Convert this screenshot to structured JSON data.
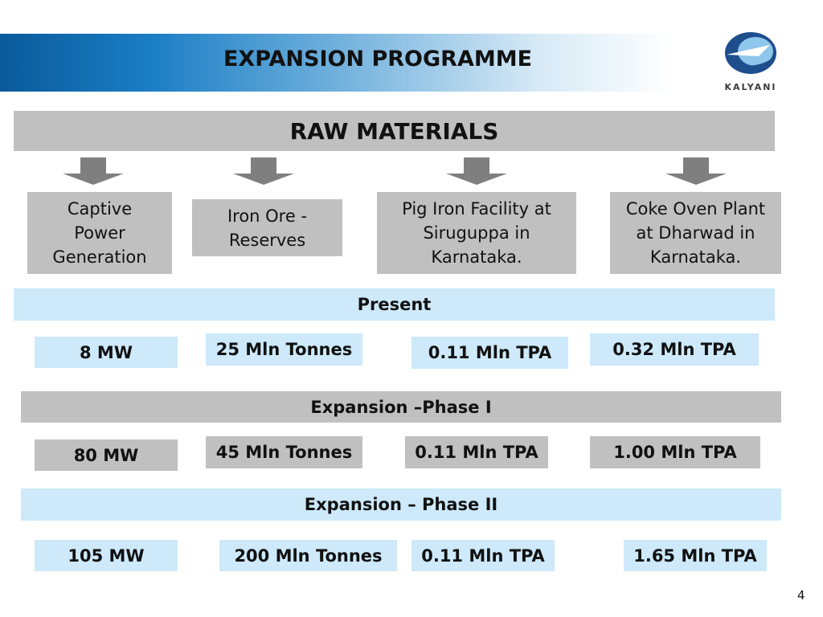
{
  "header": {
    "title": "EXPANSION PROGRAMME",
    "logo_text": "KALYANI"
  },
  "raw_materials": {
    "label": "RAW MATERIALS"
  },
  "categories": [
    {
      "label": "Captive Power Generation"
    },
    {
      "label": "Iron Ore - Reserves"
    },
    {
      "label": "Pig Iron Facility at Siruguppa in Karnataka."
    },
    {
      "label": "Coke Oven Plant at Dharwad in Karnataka."
    }
  ],
  "present": {
    "label": "Present",
    "values": [
      "8 MW",
      "25 Mln Tonnes",
      "0.11 Mln TPA",
      "0.32 Mln TPA"
    ]
  },
  "phase1": {
    "label": "Expansion –Phase I",
    "values": [
      "80 MW",
      "45 Mln Tonnes",
      "0.11 Mln TPA",
      "1.00 Mln TPA"
    ]
  },
  "phase2": {
    "label": "Expansion – Phase II",
    "values": [
      "105 MW",
      "200 Mln Tonnes",
      "0.11 Mln TPA",
      "1.65 Mln TPA"
    ]
  },
  "footer": {
    "page_number": "4"
  },
  "colors": {
    "gray_box": "#c0c0c0",
    "light_blue_box": "#cde9fa",
    "header_blue": "#0a5a9a",
    "arrow_gray": "#7f7f7f"
  },
  "icons": [
    "kalyani-logo-icon",
    "down-arrow-icon"
  ]
}
